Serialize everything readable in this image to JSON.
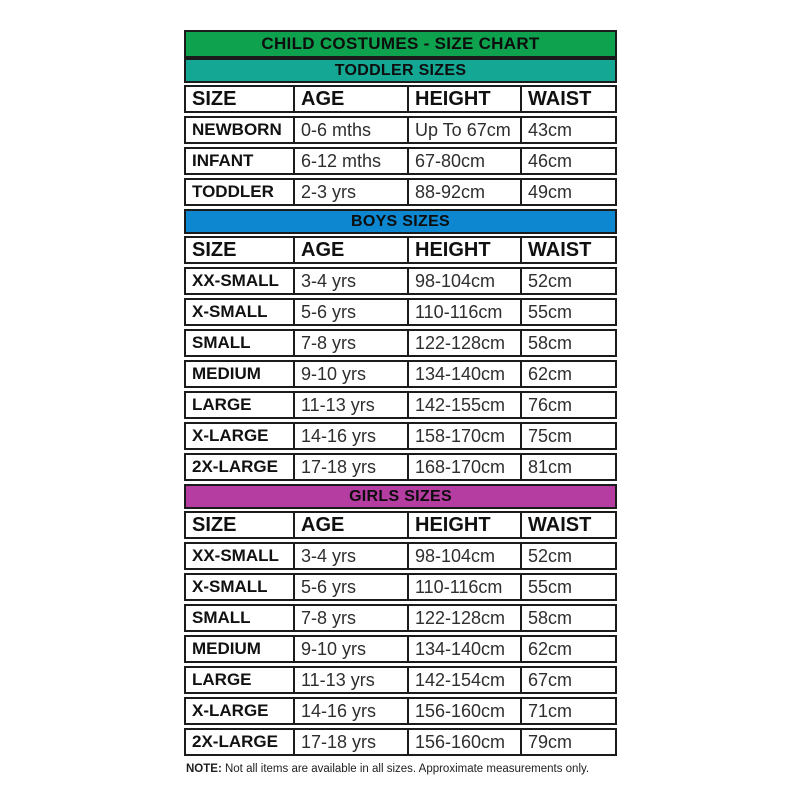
{
  "colors": {
    "title_bg": "#0EA24E",
    "toddler_bg": "#13A794",
    "boys_bg": "#0D87D0",
    "girls_bg": "#B53CA0",
    "border": "#1B1B1B"
  },
  "note": {
    "label": "NOTE:",
    "text": " Not all items are available in all sizes. Approximate measurements only."
  },
  "chart_data": {
    "type": "table",
    "title": "CHILD COSTUMES - SIZE CHART",
    "columns": [
      "SIZE",
      "AGE",
      "HEIGHT",
      "WAIST"
    ],
    "sections": [
      {
        "title": "TODDLER SIZES",
        "color": "#13A794",
        "rows": [
          [
            "NEWBORN",
            "0-6 mths",
            "Up To 67cm",
            "43cm"
          ],
          [
            "INFANT",
            "6-12 mths",
            "67-80cm",
            "46cm"
          ],
          [
            "TODDLER",
            "2-3 yrs",
            "88-92cm",
            "49cm"
          ]
        ]
      },
      {
        "title": "BOYS SIZES",
        "color": "#0D87D0",
        "rows": [
          [
            "XX-SMALL",
            "3-4 yrs",
            "98-104cm",
            "52cm"
          ],
          [
            "X-SMALL",
            "5-6 yrs",
            "110-116cm",
            "55cm"
          ],
          [
            "SMALL",
            "7-8 yrs",
            "122-128cm",
            "58cm"
          ],
          [
            "MEDIUM",
            "9-10 yrs",
            "134-140cm",
            "62cm"
          ],
          [
            "LARGE",
            "11-13 yrs",
            "142-155cm",
            "76cm"
          ],
          [
            "X-LARGE",
            "14-16 yrs",
            "158-170cm",
            "75cm"
          ],
          [
            "2X-LARGE",
            "17-18 yrs",
            "168-170cm",
            "81cm"
          ]
        ]
      },
      {
        "title": "GIRLS SIZES",
        "color": "#B53CA0",
        "rows": [
          [
            "XX-SMALL",
            "3-4 yrs",
            "98-104cm",
            "52cm"
          ],
          [
            "X-SMALL",
            "5-6 yrs",
            "110-116cm",
            "55cm"
          ],
          [
            "SMALL",
            "7-8 yrs",
            "122-128cm",
            "58cm"
          ],
          [
            "MEDIUM",
            "9-10 yrs",
            "134-140cm",
            "62cm"
          ],
          [
            "LARGE",
            "11-13 yrs",
            "142-154cm",
            "67cm"
          ],
          [
            "X-LARGE",
            "14-16 yrs",
            "156-160cm",
            "71cm"
          ],
          [
            "2X-LARGE",
            "17-18 yrs",
            "156-160cm",
            "79cm"
          ]
        ]
      }
    ]
  }
}
